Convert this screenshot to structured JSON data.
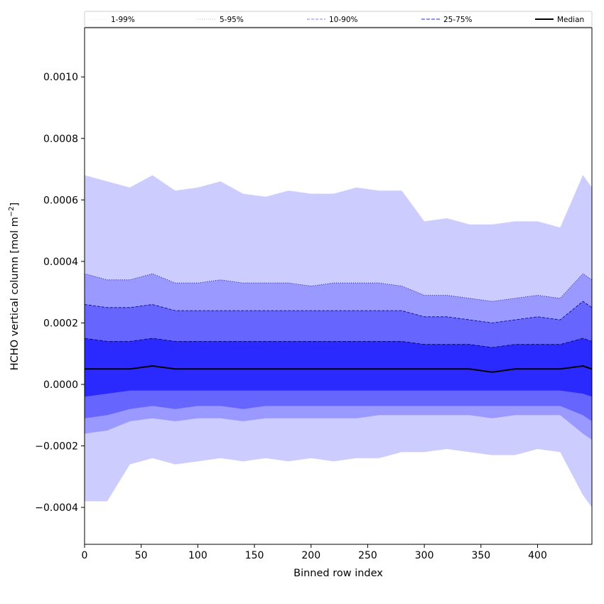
{
  "chart_data": {
    "type": "area",
    "xlabel": "Binned row index",
    "ylabel_main": "HCHO vertical column [mol m",
    "ylabel_sup": "−2",
    "ylabel_close": "]",
    "xlim": [
      0,
      448
    ],
    "ylim": [
      -0.00052,
      0.00116
    ],
    "x_ticks": [
      0,
      50,
      100,
      150,
      200,
      250,
      300,
      350,
      400
    ],
    "x_tick_labels": [
      "0",
      "50",
      "100",
      "150",
      "200",
      "250",
      "300",
      "350",
      "400"
    ],
    "y_ticks": [
      -0.0004,
      -0.0002,
      0.0,
      0.0002,
      0.0004,
      0.0006,
      0.0008,
      0.001
    ],
    "y_tick_labels": [
      "−0.0004",
      "−0.0002",
      "0.0000",
      "0.0002",
      "0.0004",
      "0.0006",
      "0.0008",
      "0.0010"
    ],
    "grid": false,
    "legend_position": "top",
    "legend": [
      {
        "label": "1-99%",
        "color": "#d6d6ff",
        "dash": "1,2",
        "width": 0.8
      },
      {
        "label": "5-95%",
        "color": "#9f9fe6",
        "dash": "1,2",
        "width": 0.8
      },
      {
        "label": "10-90%",
        "color": "#8080ee",
        "dash": "4,2",
        "width": 1.0
      },
      {
        "label": "25-75%",
        "color": "#5050e0",
        "dash": "5,2",
        "width": 1.2
      },
      {
        "label": "Median",
        "color": "#000000",
        "dash": "",
        "width": 2.0
      }
    ],
    "x": [
      0,
      20,
      40,
      60,
      80,
      100,
      120,
      140,
      160,
      180,
      200,
      220,
      240,
      260,
      280,
      300,
      320,
      340,
      360,
      380,
      400,
      420,
      440,
      448
    ],
    "bands": [
      {
        "name": "1-99%",
        "fill": "#ccccff",
        "stroke": "#ccccff",
        "lower": [
          -0.00038,
          -0.00038,
          -0.00026,
          -0.00024,
          -0.00026,
          -0.00025,
          -0.00024,
          -0.00025,
          -0.00024,
          -0.00025,
          -0.00024,
          -0.00025,
          -0.00024,
          -0.00024,
          -0.00022,
          -0.00022,
          -0.00021,
          -0.00022,
          -0.00023,
          -0.00023,
          -0.00021,
          -0.00022,
          -0.00036,
          -0.0004
        ],
        "upper": [
          0.00068,
          0.00066,
          0.00064,
          0.00068,
          0.00063,
          0.00064,
          0.00066,
          0.00062,
          0.00061,
          0.00063,
          0.00062,
          0.00062,
          0.00064,
          0.00063,
          0.00063,
          0.00053,
          0.00054,
          0.00052,
          0.00052,
          0.00053,
          0.00053,
          0.00051,
          0.00068,
          0.00064
        ]
      },
      {
        "name": "5-95%",
        "fill": "#9999ff",
        "stroke": "#000080",
        "lower": [
          -0.00016,
          -0.00015,
          -0.00012,
          -0.00011,
          -0.00012,
          -0.00011,
          -0.00011,
          -0.00012,
          -0.00011,
          -0.00011,
          -0.00011,
          -0.00011,
          -0.00011,
          -0.0001,
          -0.0001,
          -0.0001,
          -0.0001,
          -0.0001,
          -0.00011,
          -0.0001,
          -0.0001,
          -0.0001,
          -0.00016,
          -0.00018
        ],
        "upper": [
          0.00036,
          0.00034,
          0.00034,
          0.00036,
          0.00033,
          0.00033,
          0.00034,
          0.00033,
          0.00033,
          0.00033,
          0.00032,
          0.00033,
          0.00033,
          0.00033,
          0.00032,
          0.00029,
          0.00029,
          0.00028,
          0.00027,
          0.00028,
          0.00029,
          0.00028,
          0.00036,
          0.00034
        ]
      },
      {
        "name": "10-90%",
        "fill": "#6666ff",
        "stroke": "#000080",
        "lower": [
          -0.00011,
          -0.0001,
          -8e-05,
          -7e-05,
          -8e-05,
          -7e-05,
          -7e-05,
          -8e-05,
          -7e-05,
          -7e-05,
          -7e-05,
          -7e-05,
          -7e-05,
          -7e-05,
          -7e-05,
          -7e-05,
          -7e-05,
          -7e-05,
          -7e-05,
          -7e-05,
          -7e-05,
          -7e-05,
          -0.0001,
          -0.00012
        ],
        "upper": [
          0.00026,
          0.00025,
          0.00025,
          0.00026,
          0.00024,
          0.00024,
          0.00024,
          0.00024,
          0.00024,
          0.00024,
          0.00024,
          0.00024,
          0.00024,
          0.00024,
          0.00024,
          0.00022,
          0.00022,
          0.00021,
          0.0002,
          0.00021,
          0.00022,
          0.00021,
          0.00027,
          0.00025
        ]
      },
      {
        "name": "25-75%",
        "fill": "#2a2aff",
        "stroke": "#000060",
        "lower": [
          -4e-05,
          -3e-05,
          -2e-05,
          -2e-05,
          -2e-05,
          -2e-05,
          -2e-05,
          -2e-05,
          -2e-05,
          -2e-05,
          -2e-05,
          -2e-05,
          -2e-05,
          -2e-05,
          -2e-05,
          -2e-05,
          -2e-05,
          -2e-05,
          -2e-05,
          -2e-05,
          -2e-05,
          -2e-05,
          -3e-05,
          -4e-05
        ],
        "upper": [
          0.00015,
          0.00014,
          0.00014,
          0.00015,
          0.00014,
          0.00014,
          0.00014,
          0.00014,
          0.00014,
          0.00014,
          0.00014,
          0.00014,
          0.00014,
          0.00014,
          0.00014,
          0.00013,
          0.00013,
          0.00013,
          0.00012,
          0.00013,
          0.00013,
          0.00013,
          0.00015,
          0.00014
        ]
      }
    ],
    "median": {
      "name": "Median",
      "color": "#000000",
      "values": [
        5e-05,
        5e-05,
        5e-05,
        6e-05,
        5e-05,
        5e-05,
        5e-05,
        5e-05,
        5e-05,
        5e-05,
        5e-05,
        5e-05,
        5e-05,
        5e-05,
        5e-05,
        5e-05,
        5e-05,
        5e-05,
        4e-05,
        5e-05,
        5e-05,
        5e-05,
        6e-05,
        5e-05
      ]
    }
  }
}
